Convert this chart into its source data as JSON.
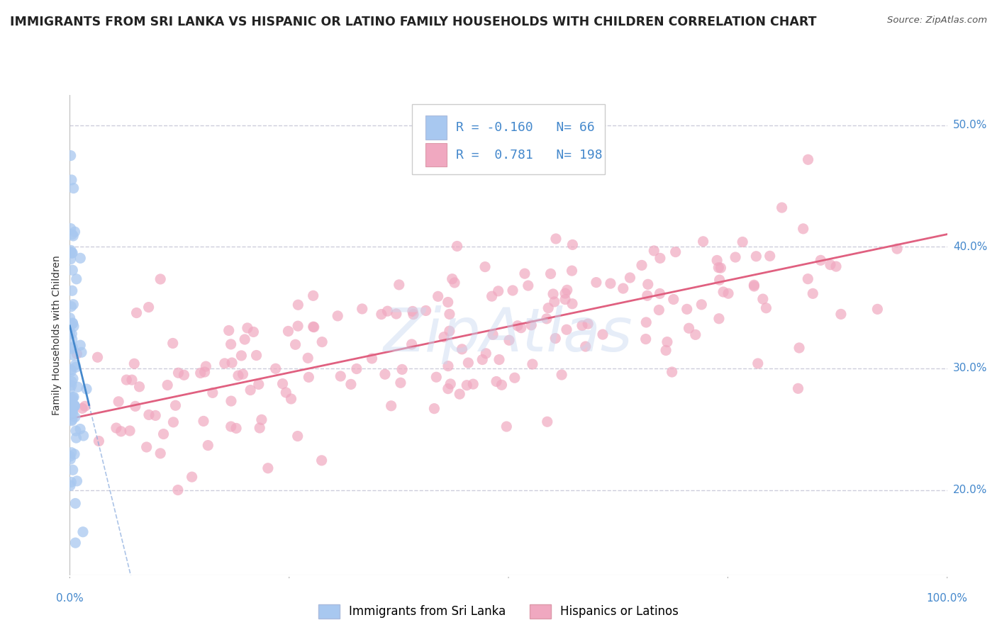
{
  "title": "IMMIGRANTS FROM SRI LANKA VS HISPANIC OR LATINO FAMILY HOUSEHOLDS WITH CHILDREN CORRELATION CHART",
  "source": "Source: ZipAtlas.com",
  "ylabel": "Family Households with Children",
  "legend_entry1": "Immigrants from Sri Lanka",
  "legend_entry2": "Hispanics or Latinos",
  "r1": -0.16,
  "n1": 66,
  "r2": 0.781,
  "n2": 198,
  "color1": "#a8c8f0",
  "color2": "#f0a8c0",
  "line_color1": "#4488cc",
  "line_color2": "#e06080",
  "xlim": [
    0.0,
    1.0
  ],
  "ylim": [
    0.13,
    0.525
  ],
  "yticks": [
    0.2,
    0.3,
    0.4,
    0.5
  ],
  "ytick_labels": [
    "20.0%",
    "30.0%",
    "40.0%",
    "50.0%"
  ],
  "xtick_labels": [
    "0.0%",
    "100.0%"
  ],
  "background_color": "#ffffff",
  "grid_color": "#c8c8d8",
  "grid_style": "--",
  "title_fontsize": 12.5,
  "source_fontsize": 9.5,
  "axis_label_fontsize": 10,
  "tick_fontsize": 11,
  "seed1": 7,
  "seed2": 12
}
